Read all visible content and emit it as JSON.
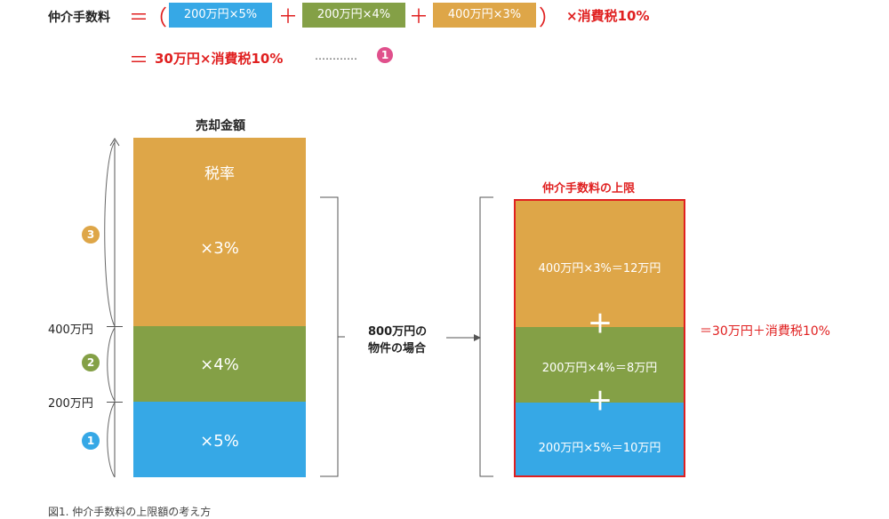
{
  "colors": {
    "blue": "#36a8e6",
    "green": "#84a046",
    "orange": "#dea648",
    "red": "#e02020",
    "pink": "#e0508c"
  },
  "formula": {
    "label": "仲介手数料",
    "equals": "＝",
    "open_paren": "（",
    "close_paren": "）",
    "term1": "200万円×5%",
    "plus": "＋",
    "term2": "200万円×4%",
    "term3": "400万円×3%",
    "tax": "×消費税10%",
    "result": "30万円×消費税10%",
    "dots": "…………",
    "ref_number": "1"
  },
  "left_column": {
    "title": "売却金額",
    "top_label": "税率",
    "seg3_rate": "×3%",
    "seg2_rate": "×4%",
    "seg1_rate": "×5%",
    "mark_400": "400万円",
    "mark_200": "200万円",
    "badge3": "3",
    "badge2": "2",
    "badge1": "1"
  },
  "middle": {
    "line1": "800万円の",
    "line2": "物件の場合"
  },
  "right_column": {
    "title": "仲介手数料の上限",
    "seg3": "400万円×3%＝12万円",
    "seg2": "200万円×4%＝8万円",
    "seg1": "200万円×5%＝10万円",
    "plus": "＋",
    "total": "＝30万円＋消費税10%"
  },
  "caption": "図1. 仲介手数料の上限額の考え方"
}
